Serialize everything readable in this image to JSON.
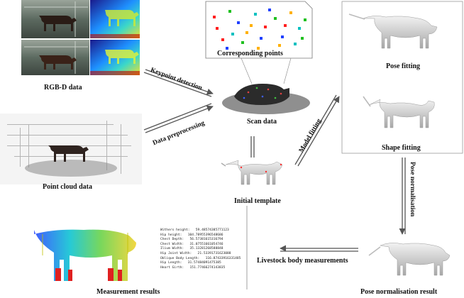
{
  "labels": {
    "rgbd": "RGB-D data",
    "point_cloud": "Point cloud data",
    "corresponding_points": "Corresponding points",
    "scan_data": "Scan data",
    "initial_template": "Initial template",
    "pose_fitting": "Pose fitting",
    "shape_fitting": "Shape fitting",
    "pose_norm_result": "Pose normalisation result",
    "measurement_results": "Measurement results",
    "keypoint_detection": "Keypoint detection",
    "data_preprocessing": "Data preprocessing",
    "model_fitting": "Model fitting",
    "pose_normalisation": "Pose normalisation",
    "livestock_measurements": "Livestock body measurements"
  },
  "measurements": [
    "Withers height:   59.48574385771123",
    "Hip height:   104.78955396548686",
    "Chest Depth:   56.57381615316794",
    "Chest Width:   31.07551661054746",
    "Ilium Width:   35.13281268588848",
    "Hip Joint Width:   21.53391731623088",
    "Oblique Body Length:   116.87433916331485",
    "Hip Length:   31.57484091475385",
    "Heart Girth:   151.77466274143835"
  ],
  "colors": {
    "arrow": "#555555",
    "body": "#dcdcdc",
    "corr_points": [
      "#ff2020",
      "#20c020",
      "#2040ff",
      "#ffb000",
      "#00c0c0"
    ]
  }
}
